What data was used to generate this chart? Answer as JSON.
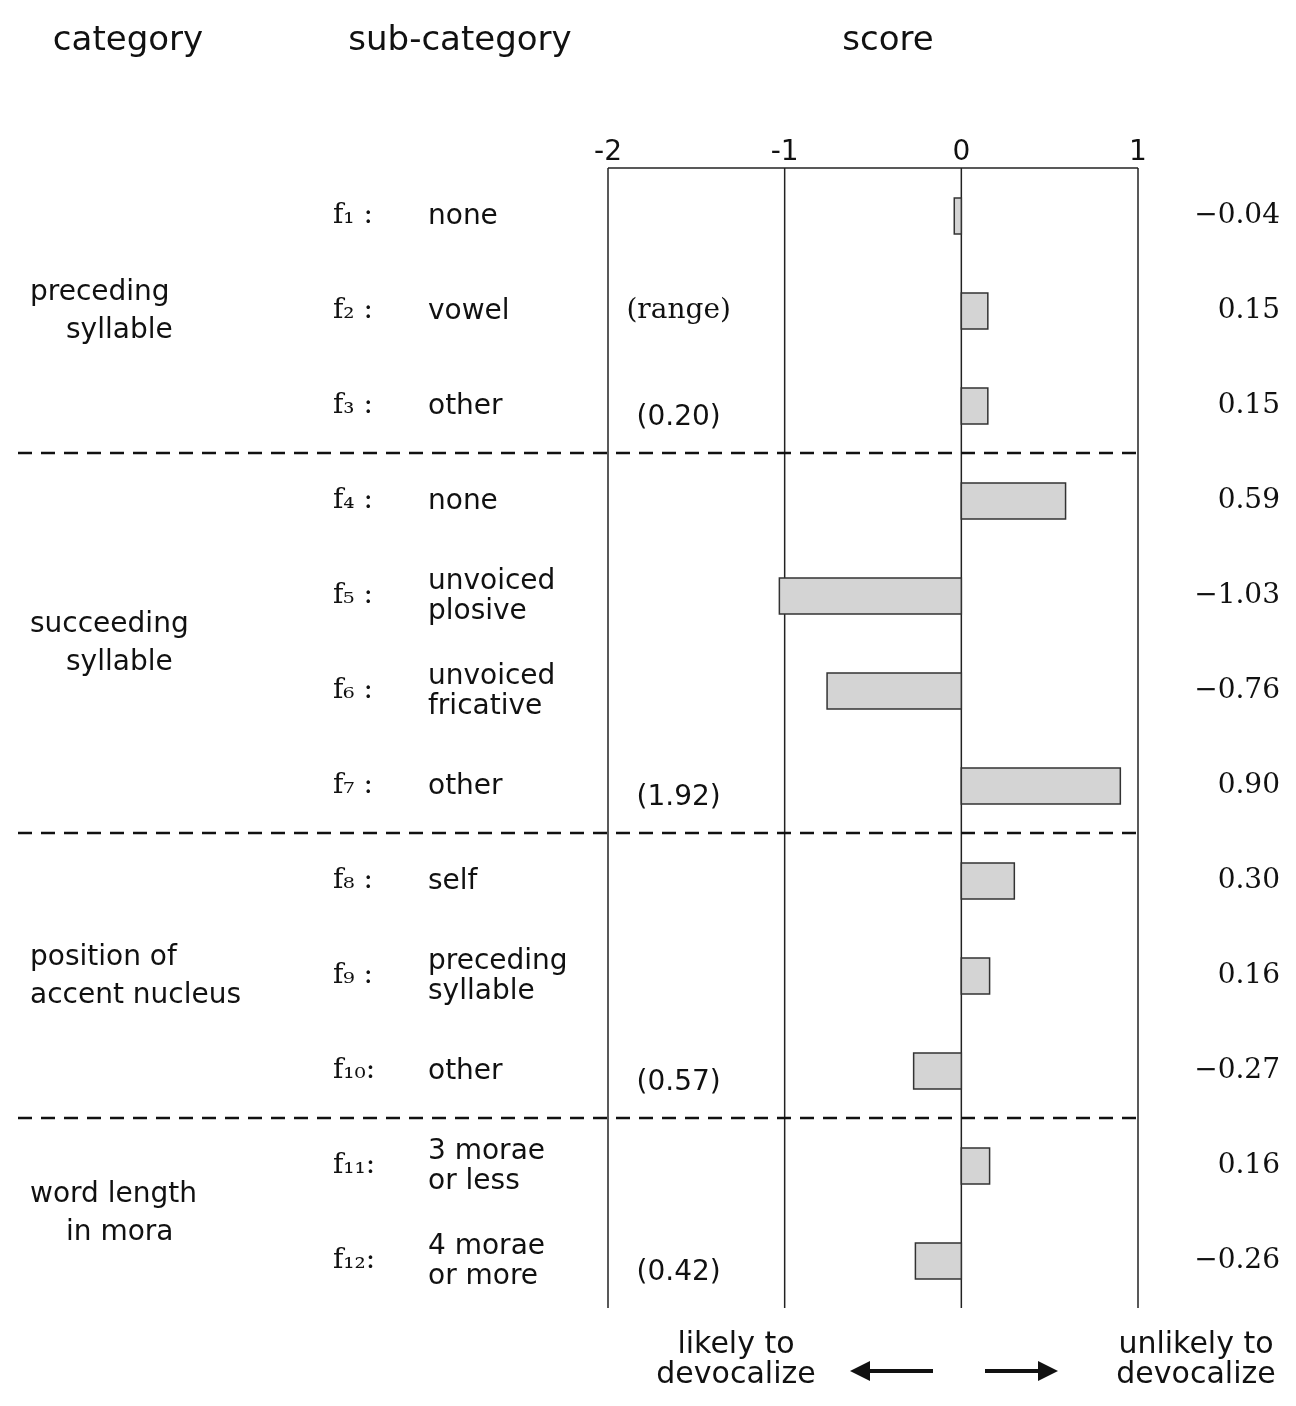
{
  "chart_data": {
    "type": "bar",
    "orientation": "horizontal",
    "xlabel": "score",
    "categories": [
      "f₁ : none",
      "f₂ : vowel",
      "f₃ : other",
      "f₄ : none",
      "f₅ : unvoiced plosive",
      "f₆ : unvoiced fricative",
      "f₇ : other",
      "f₈ : self",
      "f₉ : preceding syllable",
      "f₁₀: other",
      "f₁₁: 3 morae or less",
      "f₁₂: 4 morae or more"
    ],
    "values": [
      -0.04,
      0.15,
      0.15,
      0.59,
      -1.03,
      -0.76,
      0.9,
      0.3,
      0.16,
      -0.27,
      0.16,
      -0.26
    ],
    "value_labels": [
      "−0.04",
      "0.15",
      "0.15",
      "0.59",
      "−1.03",
      "−0.76",
      "0.90",
      "0.30",
      "0.16",
      "−0.27",
      "0.16",
      "−0.26"
    ],
    "color": "#d4d4d4",
    "xlim": [
      -2,
      1
    ],
    "xticks": [
      -2,
      -1,
      0,
      1
    ],
    "grid": "x",
    "annotations": [
      "category",
      "sub-category",
      "preceding\nsyllable",
      "succeeding\nsyllable",
      "position of\naccent nucleus",
      "word length\nin mora",
      "(range)",
      "(0.20)",
      "(1.92)",
      "(0.57)",
      "(0.42)",
      "likely to\ndevocalize",
      "unlikely to\ndevocalize"
    ]
  }
}
